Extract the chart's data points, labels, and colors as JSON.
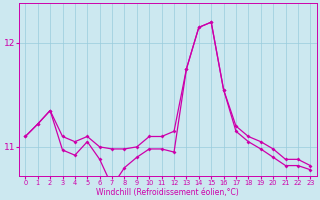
{
  "x": [
    0,
    1,
    2,
    3,
    4,
    5,
    6,
    7,
    8,
    9,
    10,
    11,
    12,
    13,
    14,
    15,
    16,
    17,
    18,
    19,
    20,
    21,
    22,
    23
  ],
  "upper": [
    11.1,
    11.22,
    11.35,
    11.1,
    11.05,
    11.1,
    11.0,
    10.98,
    10.98,
    11.0,
    11.1,
    11.1,
    11.15,
    11.75,
    12.15,
    12.2,
    11.55,
    11.2,
    11.1,
    11.05,
    10.98,
    10.88,
    10.88,
    10.82
  ],
  "lower": [
    11.1,
    11.22,
    11.35,
    10.97,
    10.92,
    11.05,
    10.88,
    10.62,
    10.8,
    10.9,
    10.98,
    10.98,
    10.95,
    11.75,
    12.15,
    12.2,
    11.55,
    11.15,
    11.05,
    10.98,
    10.9,
    10.82,
    10.82,
    10.78
  ],
  "yticks": [
    11,
    12
  ],
  "ylim": [
    10.72,
    12.38
  ],
  "xlim": [
    -0.5,
    23.5
  ],
  "line_color": "#cc00aa",
  "bg_color": "#cce8f0",
  "grid_color": "#99ccdd",
  "xlabel": "Windchill (Refroidissement éolien,°C)"
}
